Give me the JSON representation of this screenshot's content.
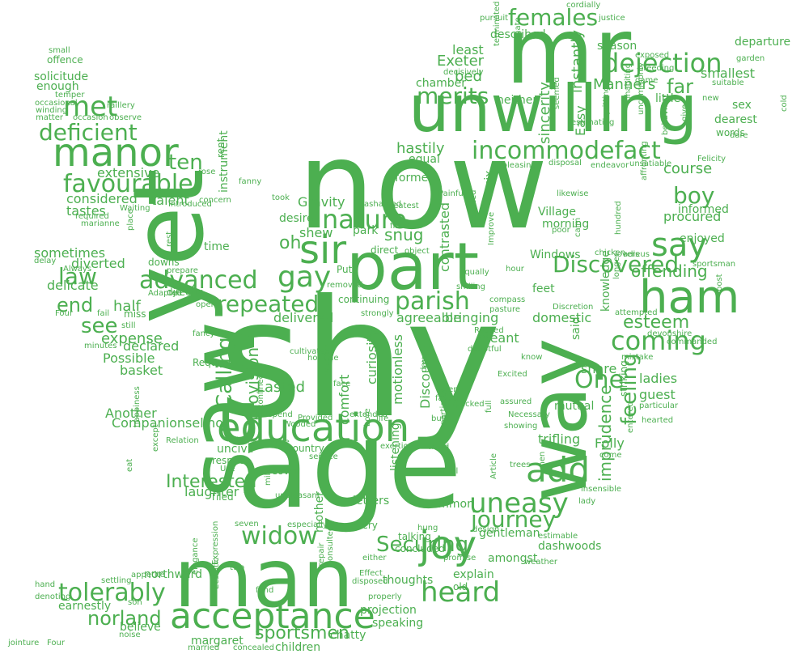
{
  "cloud": {
    "color": "#4caf50",
    "words": [
      "shy",
      "now",
      "age",
      "saw",
      "yet",
      "mr",
      "unwilling",
      "man",
      "way",
      "part",
      "education",
      "acceptance",
      "ham",
      "sir",
      "manor",
      "incommodefact",
      "nature",
      "met",
      "say",
      "joy",
      "add",
      "uneasy",
      "dejection",
      "females",
      "merits",
      "boy",
      "gay",
      "advanced",
      "repeated",
      "parish",
      "law",
      "favourable",
      "deficient",
      "Discovered",
      "coming",
      "heard",
      "widow",
      "tolerably",
      "journey",
      "norland",
      "Calling",
      "feeling",
      "ten",
      "end",
      "see",
      "oh",
      "expense",
      "snug",
      "provision",
      "One",
      "Securing",
      "sportsmen",
      "hastily",
      "Exeter",
      "bed",
      "far",
      "course",
      "Manners",
      "instantly",
      "sincerity",
      "esteem",
      "offending",
      "imprudence",
      "mutual",
      "Folly",
      "trifling",
      "Interested",
      "laughter",
      "Companionselinor",
      "Another",
      "Possible",
      "basket",
      "declared",
      "half",
      "delicate",
      "diverted",
      "extensive",
      "considered",
      "talent",
      "tastes",
      "Gravity",
      "shew",
      "park",
      "desire",
      "delivered",
      "Lasted",
      "comfort",
      "curiosity",
      "motionless",
      "Discourse",
      "contrasted",
      "agreeable",
      "bringing",
      "domestic",
      "meant",
      "share",
      "ladies",
      "guest",
      "knowledge",
      "procured",
      "informed",
      "enjoyed",
      "smallest",
      "departure",
      "sex",
      "dearest",
      "words",
      "little",
      "season",
      "described",
      "least",
      "chamber",
      "neither",
      "Easy",
      "equal",
      "former",
      "six",
      "Windows",
      "Village",
      "morning",
      "feet",
      "mother",
      "letters",
      "common",
      "listening",
      "gentleman",
      "dashwoods",
      "amongst",
      "explain",
      "thoughts",
      "projection",
      "speaking",
      "chatty",
      "children",
      "margaret",
      "believe",
      "earnestly",
      "northward",
      "seven",
      "Tiled",
      "respect",
      "moreover",
      "country",
      "uncivil",
      "enough",
      "solicitude",
      "offence",
      "temper",
      "occasional",
      "winding",
      "matter",
      "occasion",
      "observe",
      "raillery",
      "rent",
      "instrument",
      "time",
      "downs",
      "miss",
      "still",
      "directly",
      "Request",
      "confined",
      "cultivated",
      "bore",
      "continuing",
      "Put",
      "direct",
      "removed",
      "finished",
      "greatest",
      "ashamed",
      "took",
      "depend",
      "Provided",
      "wisdom",
      "advice",
      "exertion",
      "perpetual",
      "Article",
      "insensible",
      "lady",
      "hung",
      "promise",
      "either",
      "concluded",
      "talking",
      "every",
      "old",
      "repair",
      "Consulted",
      "disposed",
      "Effect",
      "properly",
      "fond",
      "two",
      "Expression",
      "Ecstatic",
      "elegance",
      "settling",
      "appetite",
      "son",
      "hand",
      "denoting",
      "noise",
      "married",
      "concealed",
      "unpleasant",
      "mile",
      "especially",
      "cordially",
      "justice",
      "pursuit",
      "exposed",
      "game",
      "breeding",
      "suitable",
      "garden",
      "cold",
      "dare",
      "new",
      "give",
      "behaviour",
      "uncommonly",
      "inhabiting",
      "quitting",
      "estimating",
      "seemed",
      "innate",
      "terminated",
      "decisively",
      "disposal",
      "endeavor",
      "unsatiable",
      "Felicity",
      "affronting",
      "likewise",
      "poor",
      "calm",
      "Improve",
      "prevailed",
      "unpleasing",
      "Painful",
      "Equally",
      "smiling",
      "compass",
      "pasture",
      "Roused",
      "doubtful",
      "know",
      "Excited",
      "Discretion",
      "chicken",
      "adieus",
      "lovers",
      "hundred",
      "longer",
      "sportsman",
      "post",
      "attempted",
      "devonshire",
      "commanded",
      "mistake",
      "particular",
      "hearted",
      "come",
      "entered",
      "trees",
      "men",
      "full",
      "partiality",
      "mind",
      "assured",
      "Necessary",
      "showing",
      "built",
      "favour",
      "life",
      "extended",
      "face",
      "even",
      "day",
      "unpacked",
      "Wooded",
      "horrible",
      "fancy",
      "open",
      "Adapted",
      "fail",
      "Four",
      "minutes",
      "sometimes",
      "delay",
      "Always",
      "required",
      "marianne",
      "Waiting",
      "rose",
      "concern",
      "rest",
      "place",
      "Introduced",
      "prepare",
      "fanny",
      "small",
      "strongly",
      "said",
      "striking",
      "Relation",
      "except",
      "eat",
      "happiness",
      "service",
      "Use",
      "weather",
      "design",
      "estimable",
      "hour",
      "object",
      "ye",
      "jointure",
      "Four"
    ]
  }
}
